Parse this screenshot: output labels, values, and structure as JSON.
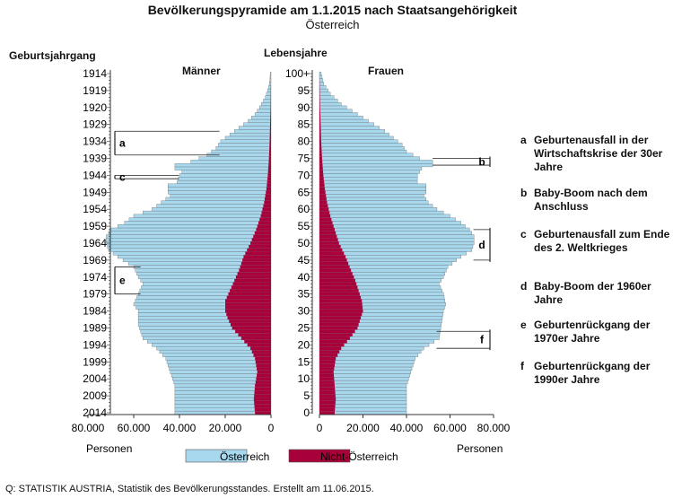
{
  "chart_data": {
    "type": "population-pyramid",
    "title": "Bevölkerungspyramide am 1.1.2015 nach Staatsangehörigkeit",
    "subtitle": "Österreich",
    "left_axis_title": "Geburtsjahrgang",
    "center_axis_title": "Lebensjahre",
    "male_label": "Männer",
    "female_label": "Frauen",
    "x_unit_label": "Personen",
    "x_max": 80000,
    "x_ticks": [
      0,
      20000,
      40000,
      60000,
      80000
    ],
    "x_tick_labels_left": [
      "80.000",
      "60.000",
      "40.000",
      "20.000",
      "0"
    ],
    "x_tick_labels_right": [
      "0",
      "20.000",
      "40.000",
      "60.000",
      "80.000"
    ],
    "age_ticks": [
      {
        "age": 100,
        "label": "100+"
      },
      {
        "age": 95,
        "label": "95"
      },
      {
        "age": 90,
        "label": "90"
      },
      {
        "age": 85,
        "label": "85"
      },
      {
        "age": 80,
        "label": "80"
      },
      {
        "age": 75,
        "label": "75"
      },
      {
        "age": 70,
        "label": "70"
      },
      {
        "age": 65,
        "label": "65"
      },
      {
        "age": 60,
        "label": "60"
      },
      {
        "age": 55,
        "label": "55"
      },
      {
        "age": 50,
        "label": "50"
      },
      {
        "age": 45,
        "label": "45"
      },
      {
        "age": 40,
        "label": "40"
      },
      {
        "age": 35,
        "label": "35"
      },
      {
        "age": 30,
        "label": "30"
      },
      {
        "age": 25,
        "label": "25"
      },
      {
        "age": 20,
        "label": "20"
      },
      {
        "age": 15,
        "label": "15"
      },
      {
        "age": 10,
        "label": "10"
      },
      {
        "age": 5,
        "label": "5"
      },
      {
        "age": 0,
        "label": "0"
      }
    ],
    "year_ticks": [
      "1914",
      "1919",
      "1920",
      "1929",
      "1934",
      "1939",
      "1944",
      "1949",
      "1954",
      "1959",
      "1964",
      "1969",
      "1974",
      "1979",
      "1984",
      "1989",
      "1994",
      "1999",
      "2004",
      "2009",
      "2014"
    ],
    "series": [
      {
        "name": "Österreich",
        "color": "#a8d8ee"
      },
      {
        "name": "Nicht-Österreich",
        "color": "#a8003a"
      }
    ],
    "male_total": [
      [
        0,
        42000
      ],
      [
        4,
        42000
      ],
      [
        8,
        42000
      ],
      [
        12,
        44000
      ],
      [
        16,
        46000
      ],
      [
        19,
        50000
      ],
      [
        22,
        56000
      ],
      [
        26,
        58000
      ],
      [
        30,
        58000
      ],
      [
        32,
        60000
      ],
      [
        35,
        58000
      ],
      [
        38,
        56000
      ],
      [
        40,
        58000
      ],
      [
        43,
        60000
      ],
      [
        46,
        67000
      ],
      [
        48,
        71000
      ],
      [
        50,
        72000
      ],
      [
        52,
        72000
      ],
      [
        54,
        70000
      ],
      [
        56,
        64000
      ],
      [
        58,
        60000
      ],
      [
        60,
        52000
      ],
      [
        62,
        48000
      ],
      [
        64,
        44000
      ],
      [
        65,
        45000
      ],
      [
        67,
        45000
      ],
      [
        68,
        41000
      ],
      [
        70,
        40000
      ],
      [
        71,
        39000
      ],
      [
        72,
        42000
      ],
      [
        73,
        42000
      ],
      [
        74,
        35000
      ],
      [
        76,
        28000
      ],
      [
        78,
        24000
      ],
      [
        80,
        22000
      ],
      [
        82,
        18000
      ],
      [
        84,
        14000
      ],
      [
        86,
        10000
      ],
      [
        88,
        7000
      ],
      [
        90,
        5000
      ],
      [
        93,
        2500
      ],
      [
        96,
        1000
      ],
      [
        98,
        500
      ],
      [
        100,
        300
      ]
    ],
    "male_foreign": [
      [
        0,
        7000
      ],
      [
        4,
        7500
      ],
      [
        8,
        7000
      ],
      [
        12,
        6000
      ],
      [
        16,
        7000
      ],
      [
        19,
        9000
      ],
      [
        22,
        13000
      ],
      [
        25,
        17000
      ],
      [
        28,
        19000
      ],
      [
        30,
        20000
      ],
      [
        33,
        20000
      ],
      [
        36,
        18000
      ],
      [
        39,
        16000
      ],
      [
        42,
        14000
      ],
      [
        46,
        12000
      ],
      [
        50,
        9000
      ],
      [
        54,
        6500
      ],
      [
        58,
        4500
      ],
      [
        62,
        3000
      ],
      [
        66,
        2000
      ],
      [
        70,
        1400
      ],
      [
        75,
        900
      ],
      [
        80,
        600
      ],
      [
        90,
        200
      ],
      [
        100,
        0
      ]
    ],
    "female_total": [
      [
        0,
        40000
      ],
      [
        4,
        40000
      ],
      [
        8,
        40000
      ],
      [
        12,
        42000
      ],
      [
        16,
        44000
      ],
      [
        19,
        48000
      ],
      [
        22,
        55000
      ],
      [
        26,
        56000
      ],
      [
        30,
        57000
      ],
      [
        32,
        58000
      ],
      [
        35,
        57000
      ],
      [
        38,
        55000
      ],
      [
        40,
        57000
      ],
      [
        43,
        59000
      ],
      [
        46,
        65000
      ],
      [
        48,
        70000
      ],
      [
        50,
        71000
      ],
      [
        52,
        71000
      ],
      [
        54,
        69000
      ],
      [
        56,
        65000
      ],
      [
        58,
        60000
      ],
      [
        60,
        54000
      ],
      [
        62,
        50000
      ],
      [
        64,
        48000
      ],
      [
        65,
        49000
      ],
      [
        67,
        49000
      ],
      [
        68,
        45000
      ],
      [
        70,
        45000
      ],
      [
        72,
        47000
      ],
      [
        73,
        52000
      ],
      [
        74,
        52000
      ],
      [
        75,
        46000
      ],
      [
        77,
        40000
      ],
      [
        79,
        38000
      ],
      [
        81,
        34000
      ],
      [
        83,
        30000
      ],
      [
        85,
        25000
      ],
      [
        87,
        20000
      ],
      [
        89,
        15000
      ],
      [
        91,
        10000
      ],
      [
        94,
        5000
      ],
      [
        97,
        2000
      ],
      [
        100,
        800
      ]
    ],
    "female_foreign": [
      [
        0,
        7000
      ],
      [
        4,
        7500
      ],
      [
        8,
        7000
      ],
      [
        12,
        6500
      ],
      [
        16,
        7500
      ],
      [
        19,
        10000
      ],
      [
        22,
        14000
      ],
      [
        25,
        17500
      ],
      [
        28,
        19000
      ],
      [
        30,
        20000
      ],
      [
        33,
        19500
      ],
      [
        36,
        18000
      ],
      [
        39,
        16500
      ],
      [
        42,
        14500
      ],
      [
        46,
        12000
      ],
      [
        50,
        9000
      ],
      [
        54,
        7000
      ],
      [
        58,
        5000
      ],
      [
        62,
        3500
      ],
      [
        66,
        2500
      ],
      [
        70,
        1800
      ],
      [
        75,
        1200
      ],
      [
        80,
        800
      ],
      [
        90,
        300
      ],
      [
        100,
        0
      ]
    ],
    "annotation_brackets": [
      {
        "key": "a",
        "side": "left",
        "age_from": 76,
        "age_to": 83
      },
      {
        "key": "c",
        "side": "left",
        "age_from": 69,
        "age_to": 70
      },
      {
        "key": "e",
        "side": "left",
        "age_from": 35,
        "age_to": 43
      },
      {
        "key": "b",
        "side": "right",
        "age_from": 73,
        "age_to": 75
      },
      {
        "key": "d",
        "side": "right",
        "age_from": 45,
        "age_to": 54
      },
      {
        "key": "f",
        "side": "right",
        "age_from": 19,
        "age_to": 24
      }
    ]
  },
  "notes": [
    {
      "key": "a",
      "text": "Geburtenausfall in der Wirtschaftskrise der  30er Jahre"
    },
    {
      "key": "b",
      "text": "Baby-Boom nach dem Anschluss"
    },
    {
      "key": "c",
      "text": "Geburtenausfall zum Ende des 2. Weltkrieges"
    },
    {
      "key": "d",
      "text": "Baby-Boom der 1960er Jahre"
    },
    {
      "key": "e",
      "text": "Geburtenrückgang der 1970er Jahre"
    },
    {
      "key": "f",
      "text": "Geburtenrückgang der 1990er Jahre"
    }
  ],
  "source": "Q: STATISTIK AUSTRIA, Statistik des Bevölkerungsstandes. Erstellt am 11.06.2015."
}
